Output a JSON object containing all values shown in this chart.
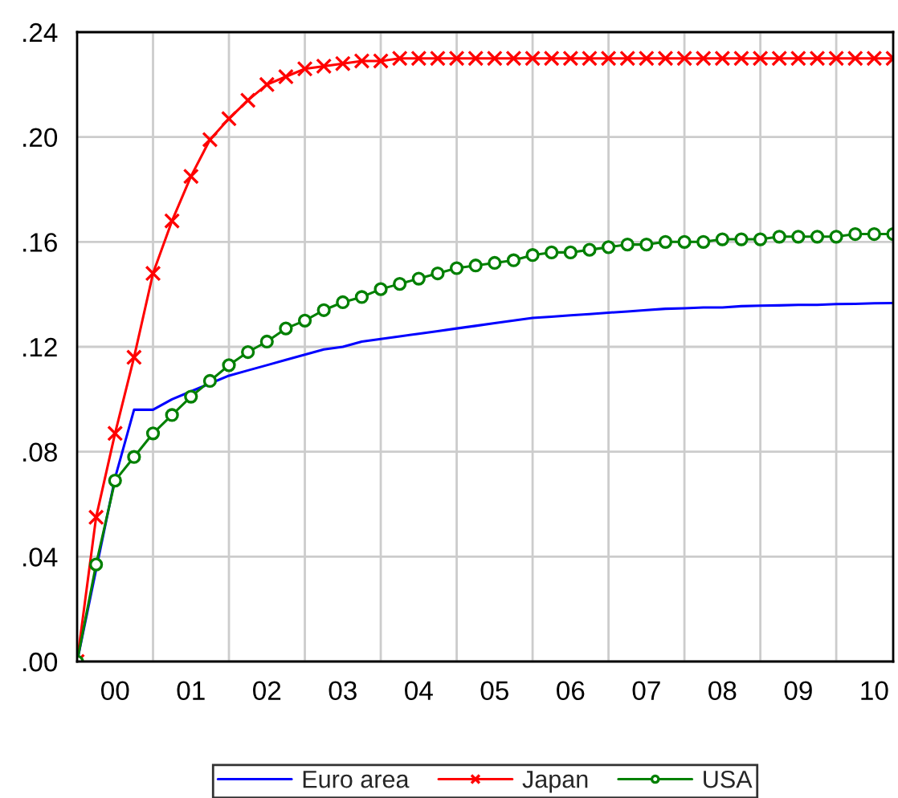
{
  "chart_data": {
    "type": "line",
    "x": [
      "2000-01",
      "2000-04",
      "2000-07",
      "2000-10",
      "2001-01",
      "2001-04",
      "2001-07",
      "2001-10",
      "2002-01",
      "2002-04",
      "2002-07",
      "2002-10",
      "2003-01",
      "2003-04",
      "2003-07",
      "2003-10",
      "2004-01",
      "2004-04",
      "2004-07",
      "2004-10",
      "2005-01",
      "2005-04",
      "2005-07",
      "2005-10",
      "2006-01",
      "2006-04",
      "2006-07",
      "2006-10",
      "2007-01",
      "2007-04",
      "2007-07",
      "2007-10",
      "2008-01",
      "2008-04",
      "2008-07",
      "2008-10",
      "2009-01",
      "2009-04",
      "2009-07",
      "2009-10",
      "2010-01",
      "2010-04",
      "2010-07",
      "2010-10"
    ],
    "series": [
      {
        "name": "Euro area",
        "color": "#0000ff",
        "marker": "none",
        "values": [
          0,
          0.035,
          0.07,
          0.096,
          0.096,
          0.1,
          0.103,
          0.106,
          0.109,
          0.111,
          0.113,
          0.115,
          0.117,
          0.119,
          0.12,
          0.122,
          0.123,
          0.124,
          0.125,
          0.126,
          0.127,
          0.128,
          0.129,
          0.13,
          0.131,
          0.1315,
          0.132,
          0.1325,
          0.133,
          0.1335,
          0.134,
          0.1345,
          0.1347,
          0.135,
          0.135,
          0.1355,
          0.1357,
          0.1358,
          0.136,
          0.136,
          0.1363,
          0.1364,
          0.1366,
          0.1367
        ]
      },
      {
        "name": "Japan",
        "color": "#ff0000",
        "marker": "cross",
        "values": [
          0,
          0.055,
          0.087,
          0.116,
          0.148,
          0.168,
          0.185,
          0.199,
          0.207,
          0.214,
          0.22,
          0.223,
          0.226,
          0.227,
          0.228,
          0.229,
          0.229,
          0.23,
          0.23,
          0.23,
          0.23,
          0.23,
          0.23,
          0.23,
          0.23,
          0.23,
          0.23,
          0.23,
          0.23,
          0.23,
          0.23,
          0.23,
          0.23,
          0.23,
          0.23,
          0.23,
          0.23,
          0.23,
          0.23,
          0.23,
          0.23,
          0.23,
          0.23,
          0.23
        ]
      },
      {
        "name": "USA",
        "color": "#008000",
        "marker": "circle",
        "values": [
          0,
          0.037,
          0.069,
          0.078,
          0.087,
          0.094,
          0.101,
          0.107,
          0.113,
          0.118,
          0.122,
          0.127,
          0.13,
          0.134,
          0.137,
          0.139,
          0.142,
          0.144,
          0.146,
          0.148,
          0.15,
          0.151,
          0.152,
          0.153,
          0.155,
          0.156,
          0.156,
          0.157,
          0.158,
          0.159,
          0.159,
          0.16,
          0.16,
          0.16,
          0.161,
          0.161,
          0.161,
          0.162,
          0.162,
          0.162,
          0.162,
          0.163,
          0.163,
          0.163
        ]
      }
    ],
    "xlim": [
      "2000-01",
      "2010-10"
    ],
    "xticks": [
      {
        "value": "2000-07",
        "label": "00"
      },
      {
        "value": "2001-07",
        "label": "01"
      },
      {
        "value": "2002-07",
        "label": "02"
      },
      {
        "value": "2003-07",
        "label": "03"
      },
      {
        "value": "2004-07",
        "label": "04"
      },
      {
        "value": "2005-07",
        "label": "05"
      },
      {
        "value": "2006-07",
        "label": "06"
      },
      {
        "value": "2007-07",
        "label": "07"
      },
      {
        "value": "2008-07",
        "label": "08"
      },
      {
        "value": "2009-07",
        "label": "09"
      },
      {
        "value": "2010-07",
        "label": "10"
      },
      {
        "value": "2001-01",
        "label": null
      },
      {
        "value": "2002-01",
        "label": null
      },
      {
        "value": "2003-01",
        "label": null
      },
      {
        "value": "2004-01",
        "label": null
      },
      {
        "value": "2005-01",
        "label": null
      },
      {
        "value": "2006-01",
        "label": null
      },
      {
        "value": "2007-01",
        "label": null
      },
      {
        "value": "2008-01",
        "label": null
      },
      {
        "value": "2009-01",
        "label": null
      },
      {
        "value": "2010-01",
        "label": null
      }
    ],
    "ylim": [
      0,
      0.24
    ],
    "yticks": [
      {
        "value": 0,
        "label": ".00"
      },
      {
        "value": 0.04,
        "label": ".04"
      },
      {
        "value": 0.08,
        "label": ".08"
      },
      {
        "value": 0.12,
        "label": ".12"
      },
      {
        "value": 0.16,
        "label": ".16"
      },
      {
        "value": 0.2,
        "label": ".20"
      },
      {
        "value": 0.24,
        "label": ".24"
      }
    ],
    "grid": true,
    "legend": "bottom",
    "line_style": "solid"
  }
}
